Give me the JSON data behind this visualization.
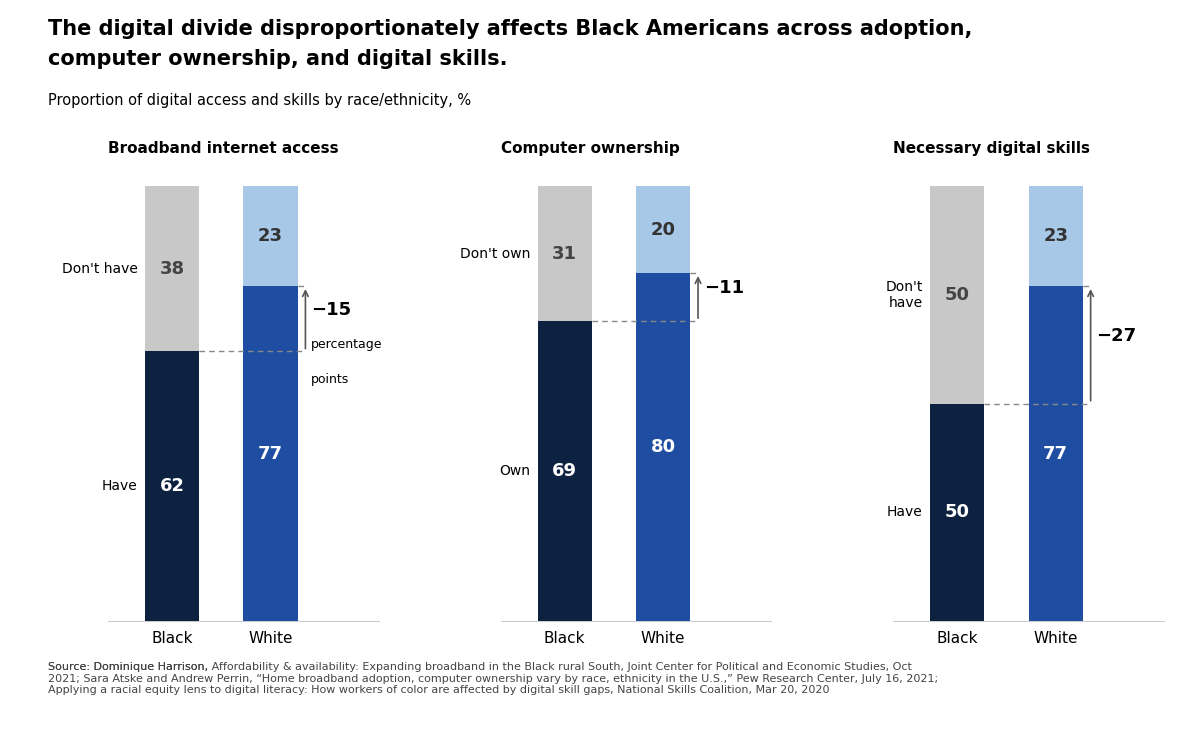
{
  "title_line1": "The digital divide disproportionately affects Black Americans across adoption,",
  "title_line2": "computer ownership, and digital skills.",
  "subtitle": "Proportion of digital access and skills by race/ethnicity, %",
  "sections": [
    {
      "title": "Broadband internet access",
      "black_have": 62,
      "black_donthave": 38,
      "white_have": 77,
      "white_donthave": 23,
      "label_have": "Have",
      "label_donthave": "Don't have",
      "diff_label": "−15",
      "diff_sub": "percentage\npoints",
      "diff_value": -15
    },
    {
      "title": "Computer ownership",
      "black_have": 69,
      "black_donthave": 31,
      "white_have": 80,
      "white_donthave": 20,
      "label_have": "Own",
      "label_donthave": "Don't own",
      "diff_label": "−11",
      "diff_sub": "",
      "diff_value": -11
    },
    {
      "title": "Necessary digital skills",
      "black_have": 50,
      "black_donthave": 50,
      "white_have": 77,
      "white_donthave": 23,
      "label_have": "Have",
      "label_donthave": "Don't\nhave",
      "diff_label": "−27",
      "diff_sub": "",
      "diff_value": -27
    }
  ],
  "black_have_color": "#0d2240",
  "black_donthave_color": "#c8c8c8",
  "white_have_color": "#1f4da1",
  "white_donthave_color": "#a8c8e8",
  "source_text_normal": "Source: Dominique Harrison, ",
  "source_italic1": "Affordability & availability: Expanding broadband in the Black rural South",
  "source_text2": ", Joint Center for Political and Economic Studies, Oct\n2021; Sara Atske and Andrew Perrin, “Home broadband adoption, computer ownership vary by race, ethnicity in the U.S.,” Pew Research Center, July 16, 2021;\n",
  "source_italic2": "Applying a racial equity lens to digital literacy: How workers of color are affected by digital skill gaps",
  "source_text3": ", National Skills Coalition, Mar 20, 2020",
  "background_color": "#ffffff"
}
